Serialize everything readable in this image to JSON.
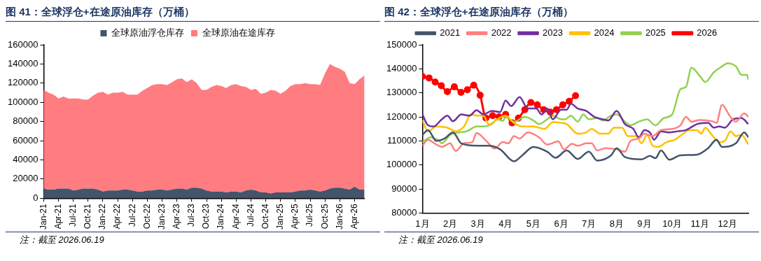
{
  "chart_data": [
    {
      "type": "area",
      "title": "图 41：全球浮仓+在途原油库存（万桶）",
      "stacked": true,
      "legend": "top",
      "ylim": [
        0,
        160000
      ],
      "yticks": [
        0,
        20000,
        40000,
        60000,
        80000,
        100000,
        120000,
        140000,
        160000
      ],
      "categories": [
        "Jan-21",
        null,
        null,
        "Apr-21",
        null,
        null,
        "Jul-21",
        null,
        null,
        "Oct-21",
        null,
        null,
        "Jan-22",
        null,
        null,
        "Apr-22",
        null,
        null,
        "Jul-22",
        null,
        null,
        "Oct-22",
        null,
        null,
        "Jan-23",
        null,
        null,
        "Apr-23",
        null,
        null,
        "Jul-23",
        null,
        null,
        "Oct-23",
        null,
        null,
        "Jan-24",
        null,
        null,
        "Apr-24",
        null,
        null,
        "Jul-24",
        null,
        null,
        "Oct-24",
        null,
        null,
        "Jan-25",
        null,
        null,
        "Apr-25",
        null,
        null,
        "Jul-25",
        null,
        null,
        "Oct-25",
        null,
        null,
        "Jan-26",
        null,
        null,
        "Apr-26",
        null,
        null
      ],
      "series": [
        {
          "name": "全球原油浮仓库存",
          "color": "#44546a",
          "values": [
            10000,
            9000,
            9000,
            10000,
            10000,
            10000,
            8000,
            9000,
            10000,
            10000,
            10000,
            9000,
            7000,
            8000,
            8000,
            8000,
            9000,
            9000,
            8000,
            7000,
            7000,
            8000,
            8000,
            9000,
            9000,
            8000,
            9000,
            10000,
            10000,
            9000,
            11000,
            11000,
            10000,
            8000,
            7000,
            7000,
            7000,
            6000,
            7000,
            7000,
            6000,
            8000,
            9000,
            8000,
            6000,
            6000,
            5000,
            6000,
            6000,
            6000,
            6000,
            7000,
            8000,
            8000,
            9000,
            8000,
            7000,
            8000,
            10000,
            11000,
            11000,
            10000,
            9000,
            12000,
            9000,
            9000
          ]
        },
        {
          "name": "全球原油在途库存",
          "color": "#ff7c80",
          "values": [
            103000,
            101000,
            99000,
            94000,
            96000,
            94000,
            96000,
            95000,
            93000,
            93000,
            97000,
            101000,
            104000,
            100000,
            102000,
            102000,
            102000,
            99000,
            100000,
            101000,
            105000,
            107000,
            110000,
            110000,
            110000,
            110000,
            112000,
            114000,
            115000,
            112000,
            113000,
            109000,
            103000,
            105000,
            109000,
            111000,
            110000,
            109000,
            111000,
            112000,
            111000,
            108000,
            104000,
            106000,
            103000,
            104000,
            108000,
            106000,
            103000,
            106000,
            111000,
            112000,
            111000,
            112000,
            110000,
            111000,
            111000,
            122000,
            130000,
            126000,
            124000,
            122000,
            111000,
            107000,
            115000,
            119000
          ]
        }
      ],
      "annotations": [
        "注：截至 2026.06.19"
      ]
    },
    {
      "type": "line",
      "title": "图 42：全球浮仓+在途原油库存（万桶）",
      "legend": "top",
      "xlim": [
        1,
        12.75
      ],
      "xticks": [
        {
          "value": 1,
          "label": "1月"
        },
        {
          "value": 2,
          "label": "2月"
        },
        {
          "value": 3,
          "label": "3月"
        },
        {
          "value": 4,
          "label": "4月"
        },
        {
          "value": 5,
          "label": "5月"
        },
        {
          "value": 6,
          "label": "6月"
        },
        {
          "value": 7,
          "label": "7月"
        },
        {
          "value": 8,
          "label": "8月"
        },
        {
          "value": 9,
          "label": "9月"
        },
        {
          "value": 10,
          "label": "10月"
        },
        {
          "value": 11,
          "label": "11月"
        },
        {
          "value": 12,
          "label": "12月"
        }
      ],
      "ylim": [
        80000,
        150000
      ],
      "yticks": [
        80000,
        90000,
        100000,
        110000,
        120000,
        130000,
        140000,
        150000
      ],
      "series": [
        {
          "name": "2021",
          "color": "#44546a",
          "marker": "none",
          "x": [
            1,
            1.2,
            1.5,
            1.8,
            2.1,
            2.4,
            3,
            3.4,
            3.8,
            4.3,
            4.6,
            5,
            5.5,
            5.8,
            6.2,
            6.6,
            7,
            7.3,
            7.8,
            8,
            8.3,
            8.9,
            9.2,
            9.4,
            9.6,
            9.9,
            10.3,
            10.9,
            11.3,
            11.6,
            11.8,
            12.3,
            12.6,
            12.75
          ],
          "values": [
            112500,
            114500,
            110000,
            111000,
            113500,
            109000,
            108000,
            108000,
            106500,
            101500,
            104000,
            107500,
            105500,
            103000,
            106000,
            102500,
            105500,
            101800,
            104000,
            107000,
            103300,
            102300,
            103800,
            102800,
            106000,
            102200,
            104000,
            104300,
            107000,
            110500,
            107500,
            109000,
            113500,
            111500
          ]
        },
        {
          "name": "2022",
          "color": "#ff8080",
          "marker": "none",
          "x": [
            1,
            1.2,
            1.5,
            1.7,
            2,
            2.2,
            2.5,
            2.8,
            2.95,
            3.3,
            3.6,
            3.9,
            4.1,
            4.3,
            4.5,
            4.8,
            5.2,
            5.5,
            5.9,
            6.1,
            6.4,
            6.6,
            6.9,
            7.1,
            7.3,
            7.6,
            8,
            8.3,
            8.5,
            8.8,
            9,
            9.3,
            9.6,
            10,
            10.3,
            10.5,
            10.7,
            11,
            11.5,
            11.6,
            11.8,
            12.1,
            12.3,
            12.6,
            12.75
          ],
          "values": [
            108000,
            110500,
            108500,
            107500,
            109000,
            105800,
            109000,
            109500,
            113300,
            110000,
            106800,
            109500,
            109000,
            112000,
            111000,
            113500,
            111500,
            108500,
            109800,
            106500,
            108800,
            108000,
            109000,
            109000,
            106000,
            107000,
            106500,
            105500,
            110000,
            111000,
            113000,
            112000,
            114500,
            115000,
            116500,
            120000,
            118000,
            118700,
            118000,
            117500,
            125000,
            120000,
            118000,
            121500,
            120000
          ]
        },
        {
          "name": "2023",
          "color": "#7030a0",
          "marker": "none",
          "x": [
            1,
            1.2,
            1.4,
            1.7,
            1.9,
            2.1,
            2.4,
            2.7,
            2.95,
            3.2,
            3.5,
            3.8,
            4,
            4.2,
            4.5,
            4.8,
            5.1,
            5.3,
            5.5,
            5.7,
            6,
            6.2,
            6.35,
            6.6,
            6.9,
            7.2,
            7.5,
            7.7,
            8,
            8.3,
            8.6,
            8.8,
            9,
            9.2,
            9.35,
            9.6,
            9.9,
            10.2,
            10.5,
            10.9,
            11.3,
            11.5,
            11.7,
            11.9,
            12.2,
            12.5,
            12.75
          ],
          "values": [
            121000,
            116500,
            116000,
            119000,
            120500,
            118200,
            121000,
            120500,
            122800,
            121000,
            122500,
            122000,
            126800,
            124500,
            128200,
            123500,
            123500,
            121000,
            123500,
            119000,
            123000,
            123000,
            125500,
            123500,
            122500,
            120000,
            119000,
            118500,
            122500,
            117000,
            115000,
            111500,
            114500,
            113500,
            110500,
            114000,
            113500,
            114000,
            114500,
            117000,
            117500,
            115500,
            116000,
            115500,
            119000,
            119500,
            117000
          ]
        },
        {
          "name": "2024",
          "color": "#ffc000",
          "marker": "none",
          "x": [
            1,
            1.2,
            1.5,
            1.9,
            2.2,
            2.5,
            2.75,
            3,
            3.2,
            3.4,
            3.7,
            4,
            4.3,
            4.6,
            5,
            5.4,
            5.7,
            6,
            6.2,
            6.6,
            6.9,
            7.1,
            7.4,
            7.7,
            7.9,
            8.2,
            8.4,
            8.7,
            8.9,
            9.1,
            9.3,
            9.5,
            9.8,
            10.1,
            10.4,
            10.6,
            10.9,
            11.05,
            11.2,
            11.4,
            11.7,
            11.9,
            12.1,
            12.3,
            12.5,
            12.75
          ],
          "values": [
            118500,
            114000,
            116000,
            115500,
            114000,
            116000,
            121000,
            120500,
            120500,
            116800,
            119000,
            120500,
            117500,
            116000,
            116000,
            115000,
            117800,
            117500,
            117000,
            113000,
            113500,
            115000,
            113000,
            113000,
            115500,
            115500,
            112000,
            112000,
            109000,
            112500,
            108000,
            107500,
            109500,
            110500,
            113000,
            114500,
            114500,
            113000,
            115500,
            113000,
            109500,
            110000,
            114000,
            112000,
            112500,
            108500
          ]
        },
        {
          "name": "2025",
          "color": "#92d050",
          "marker": "none",
          "x": [
            1,
            1.3,
            1.6,
            1.7,
            2,
            2.3,
            2.6,
            2.95,
            3.2,
            3.5,
            3.7,
            3.9,
            4,
            4.3,
            4.7,
            5,
            5.2,
            5.5,
            5.7,
            6,
            6.15,
            6.35,
            6.6,
            6.8,
            7,
            7.3,
            7.5,
            7.8,
            8,
            8.3,
            8.5,
            8.8,
            9.1,
            9.4,
            9.7,
            10,
            10.3,
            10.5,
            10.7,
            11,
            11.2,
            11.5,
            11.8,
            12,
            12.3,
            12.5,
            12.7,
            12.75
          ],
          "values": [
            109500,
            111500,
            110000,
            109000,
            112500,
            113500,
            114000,
            116000,
            116000,
            117000,
            119000,
            118300,
            120000,
            118000,
            120000,
            118500,
            117000,
            119000,
            120500,
            119000,
            119000,
            120500,
            118000,
            121000,
            119000,
            119500,
            118500,
            120500,
            121000,
            118000,
            116500,
            118000,
            119000,
            116500,
            119500,
            121000,
            131500,
            132500,
            140500,
            137000,
            134500,
            138500,
            141000,
            142300,
            141000,
            137500,
            137500,
            135500
          ]
        },
        {
          "name": "2026",
          "color": "#ff0000",
          "marker": "circle",
          "x": [
            1,
            1.24,
            1.46,
            1.68,
            1.9,
            2.15,
            2.39,
            2.62,
            2.85,
            3.08,
            3.29,
            3.53,
            3.76,
            4,
            4.23,
            4.46,
            4.69,
            4.91,
            5.14,
            5.37,
            5.61,
            5.83,
            6.06,
            6.29,
            6.52
          ],
          "values": [
            136800,
            136200,
            134500,
            133000,
            130500,
            132500,
            130200,
            131300,
            133200,
            129000,
            119500,
            120500,
            120000,
            121000,
            117500,
            119500,
            123000,
            126000,
            125000,
            123000,
            122000,
            123000,
            125000,
            126500,
            128800
          ]
        }
      ],
      "annotations": [
        "注：截至 2026.06.19"
      ]
    }
  ]
}
